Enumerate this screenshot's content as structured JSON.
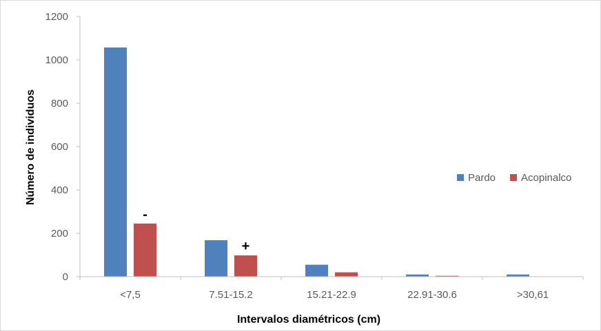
{
  "chart_data": {
    "type": "bar",
    "categories": [
      "<7,5",
      "7.51-15.2",
      "15.21-22.9",
      "22.91-30.6",
      ">30,61"
    ],
    "series": [
      {
        "name": "Pardo",
        "color": "#4f81bd",
        "values": [
          1057,
          168,
          55,
          10,
          10
        ]
      },
      {
        "name": "Acopinalco",
        "color": "#c0504d",
        "values": [
          245,
          98,
          20,
          4,
          0
        ]
      }
    ],
    "xlabel": "Intervalos diamétricos (cm)",
    "ylabel": "Número de individuos",
    "ylim": [
      0,
      1200
    ],
    "yticks": [
      "0",
      "200",
      "400",
      "600",
      "800",
      "1000",
      "1200"
    ],
    "grid": false,
    "legend_position": "right",
    "annotations": [
      {
        "text": "-",
        "category_index": 0,
        "series_index": 1
      },
      {
        "text": "+",
        "category_index": 1,
        "series_index": 1
      }
    ]
  }
}
